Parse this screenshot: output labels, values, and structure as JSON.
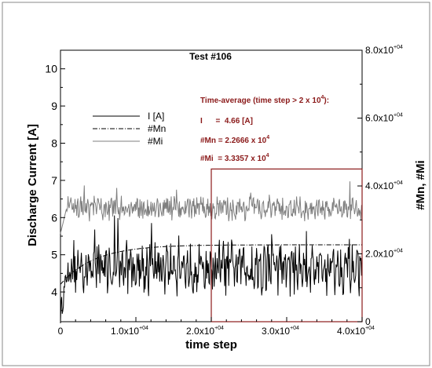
{
  "chart_data": {
    "type": "line",
    "title": "Test #106",
    "xlabel": "time step",
    "ylabel_left": "Discharge Current [A]",
    "ylabel_right": "#Mn, #Mi",
    "xlim": [
      0,
      40000
    ],
    "ylim_left": [
      3.2,
      10.5
    ],
    "ylim_right": [
      0,
      80000
    ],
    "x_ticks": [
      {
        "value": 0,
        "mant": "0",
        "exp": ""
      },
      {
        "value": 10000,
        "mant": "1.0x10",
        "exp": "+04"
      },
      {
        "value": 20000,
        "mant": "2.0x10",
        "exp": "+04"
      },
      {
        "value": 30000,
        "mant": "3.0x10",
        "exp": "+04"
      },
      {
        "value": 40000,
        "mant": "4.0x10",
        "exp": "+04"
      }
    ],
    "y_left_ticks": [
      4,
      5,
      6,
      7,
      8,
      9,
      10
    ],
    "y_right_ticks": [
      {
        "value": 0,
        "mant": "0",
        "exp": ""
      },
      {
        "value": 20000,
        "mant": "2.0x10",
        "exp": "+04"
      },
      {
        "value": 40000,
        "mant": "4.0x10",
        "exp": "+04"
      },
      {
        "value": 60000,
        "mant": "6.0x10",
        "exp": "+04"
      },
      {
        "value": 80000,
        "mant": "8.0x10",
        "exp": "+04"
      }
    ],
    "grid": false,
    "legend_position": "upper-left",
    "series": [
      {
        "name": "I [A]",
        "axis": "left",
        "style": "solid",
        "color": "#000000",
        "mean": 4.66,
        "amplitude": 0.55,
        "start": 3.4
      },
      {
        "name": "#Mn",
        "axis": "right",
        "style": "dashdot",
        "color": "#000000",
        "plateau": 22666,
        "start": 11000
      },
      {
        "name": "#Mi",
        "axis": "right",
        "style": "solid",
        "color": "#7f7f7f",
        "mean": 33357,
        "amplitude": 3000,
        "start": 26000
      }
    ],
    "highlight_box": {
      "x0": 20000,
      "x1": 40000,
      "y0_right": 0,
      "y1_right": 45000,
      "color": "#8b1a1a"
    },
    "annotations": {
      "heading": "Time-average (time step > 2 x 10",
      "heading_exp": "4",
      "heading_end": "):",
      "i_line": "I      =  4.66 [A]",
      "mn_line": "#Mn = 2.2666 x 10",
      "mn_exp": "4",
      "mi_line": "#Mi  = 3.3357 x 10",
      "mi_exp": "4"
    }
  }
}
